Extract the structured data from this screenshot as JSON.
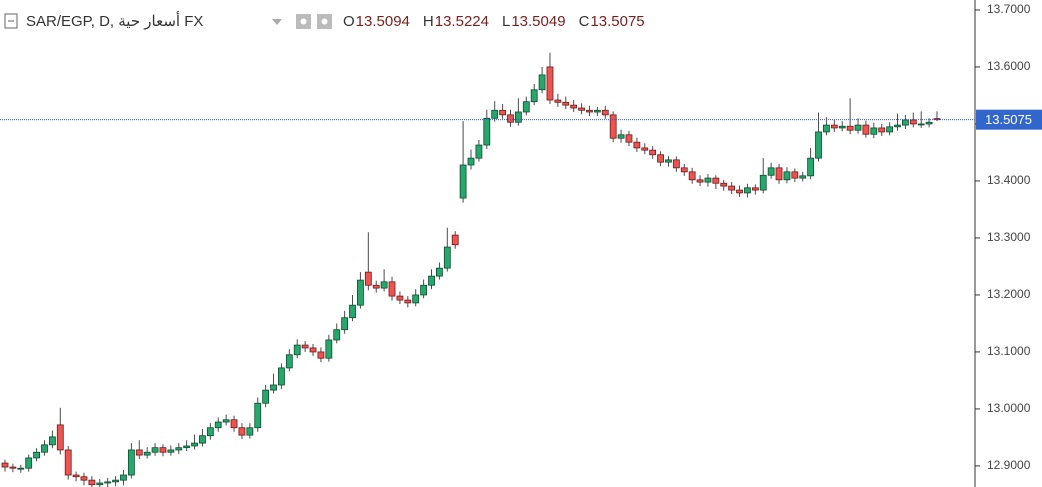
{
  "chart_data": {
    "type": "candlestick",
    "title": "SAR/EGP, D, أسعار حية FX",
    "ohlc_labels": [
      "O",
      "H",
      "L",
      "C"
    ],
    "up_color": "#26a86c",
    "down_color": "#ef5350",
    "ylim": [
      12.863,
      13.7175
    ],
    "yticks": [
      {
        "value": 12.9,
        "label": "12.9000"
      },
      {
        "value": 13.0,
        "label": "13.0000"
      },
      {
        "value": 13.1,
        "label": "13.1000"
      },
      {
        "value": 13.2,
        "label": "13.2000"
      },
      {
        "value": 13.3,
        "label": "13.3000"
      },
      {
        "value": 13.4,
        "label": "13.4000"
      },
      {
        "value": 13.5,
        "label": "13.5000"
      },
      {
        "value": 13.6,
        "label": "13.6000"
      },
      {
        "value": 13.7,
        "label": "13.7000"
      }
    ],
    "open": [
      12.905,
      12.898,
      12.896,
      12.896,
      12.914,
      12.924,
      12.937,
      12.972,
      12.928,
      12.884,
      12.881,
      12.875,
      12.867,
      12.87,
      12.872,
      12.875,
      12.884,
      12.928,
      12.919,
      12.924,
      12.932,
      12.924,
      12.928,
      12.932,
      12.935,
      12.94,
      12.953,
      12.967,
      12.977,
      12.981,
      12.967,
      12.954,
      12.967,
      13.01,
      13.033,
      13.042,
      13.072,
      13.095,
      13.112,
      13.107,
      13.1,
      13.089,
      13.121,
      13.139,
      13.16,
      13.182,
      13.24,
      13.217,
      13.212,
      13.223,
      13.198,
      13.191,
      13.186,
      13.2,
      13.217,
      13.233,
      13.247,
      13.305,
      13.37,
      13.428,
      13.44,
      13.463,
      13.51,
      13.524,
      13.516,
      13.503,
      13.521,
      13.539,
      13.56,
      13.6,
      13.542,
      13.538,
      13.533,
      13.528,
      13.524,
      13.521,
      13.524,
      13.516,
      13.475,
      13.481,
      13.468,
      13.458,
      13.454,
      13.446,
      13.433,
      13.437,
      13.423,
      13.416,
      13.402,
      13.398,
      13.405,
      13.396,
      13.391,
      13.384,
      13.379,
      13.388,
      13.384,
      13.41,
      13.423,
      13.402,
      13.416,
      13.405,
      13.409,
      13.44,
      13.486,
      13.498,
      13.493,
      13.496,
      13.489,
      13.498,
      13.482,
      13.493,
      13.486,
      13.495,
      13.498,
      13.507,
      13.5,
      13.5,
      13.5094
    ],
    "high": [
      12.911,
      12.904,
      12.902,
      12.92,
      12.931,
      12.945,
      12.962,
      13.002,
      12.935,
      12.89,
      12.888,
      12.882,
      12.877,
      12.879,
      12.882,
      12.893,
      12.94,
      12.945,
      12.933,
      12.94,
      12.938,
      12.936,
      12.94,
      12.945,
      12.955,
      12.965,
      12.975,
      12.985,
      12.99,
      12.988,
      12.975,
      12.975,
      13.02,
      13.042,
      13.062,
      13.08,
      13.105,
      13.122,
      13.119,
      13.114,
      13.108,
      13.13,
      13.15,
      13.172,
      13.2,
      13.24,
      13.31,
      13.225,
      13.245,
      13.232,
      13.206,
      13.198,
      13.21,
      13.227,
      13.245,
      13.257,
      13.318,
      13.312,
      13.505,
      13.455,
      13.472,
      13.525,
      13.54,
      13.535,
      13.525,
      13.545,
      13.548,
      13.57,
      13.6,
      13.625,
      13.553,
      13.548,
      13.542,
      13.536,
      13.532,
      13.53,
      13.532,
      13.522,
      13.49,
      13.488,
      13.476,
      13.466,
      13.461,
      13.452,
      13.444,
      13.443,
      13.43,
      13.423,
      13.41,
      13.412,
      13.41,
      13.402,
      13.398,
      13.392,
      13.395,
      13.394,
      13.44,
      13.432,
      13.43,
      13.424,
      13.422,
      13.416,
      13.458,
      13.52,
      13.512,
      13.508,
      13.505,
      13.545,
      13.51,
      13.506,
      13.502,
      13.5,
      13.503,
      13.518,
      13.516,
      13.52,
      13.522,
      13.51,
      13.5224
    ],
    "low": [
      12.89,
      12.889,
      12.888,
      12.89,
      12.908,
      12.918,
      12.931,
      12.92,
      12.876,
      12.873,
      12.866,
      12.858,
      12.86,
      12.862,
      12.864,
      12.866,
      12.878,
      12.912,
      12.913,
      12.918,
      12.917,
      12.918,
      12.921,
      12.926,
      12.929,
      12.934,
      12.946,
      12.96,
      12.971,
      12.96,
      12.947,
      12.948,
      12.96,
      13.003,
      13.027,
      13.035,
      13.066,
      13.089,
      13.1,
      13.093,
      13.082,
      13.083,
      13.115,
      13.132,
      13.154,
      13.176,
      13.208,
      13.204,
      13.206,
      13.19,
      13.184,
      13.178,
      13.18,
      13.194,
      13.21,
      13.227,
      13.241,
      13.281,
      13.362,
      13.42,
      13.434,
      13.456,
      13.504,
      13.509,
      13.495,
      13.497,
      13.515,
      13.533,
      13.554,
      13.535,
      13.53,
      13.526,
      13.521,
      13.517,
      13.514,
      13.514,
      13.509,
      13.468,
      13.467,
      13.461,
      13.451,
      13.447,
      13.439,
      13.426,
      13.425,
      13.416,
      13.409,
      13.395,
      13.391,
      13.39,
      13.386,
      13.383,
      13.377,
      13.372,
      13.371,
      13.376,
      13.378,
      13.404,
      13.395,
      13.396,
      13.398,
      13.399,
      13.403,
      13.434,
      13.48,
      13.486,
      13.487,
      13.482,
      13.483,
      13.476,
      13.475,
      13.479,
      13.48,
      13.488,
      13.491,
      13.494,
      13.493,
      13.494,
      13.5049
    ],
    "close": [
      12.898,
      12.896,
      12.896,
      12.914,
      12.924,
      12.937,
      12.951,
      12.928,
      12.884,
      12.881,
      12.875,
      12.867,
      12.87,
      12.872,
      12.875,
      12.884,
      12.928,
      12.919,
      12.924,
      12.932,
      12.924,
      12.928,
      12.932,
      12.935,
      12.94,
      12.953,
      12.967,
      12.977,
      12.981,
      12.967,
      12.954,
      12.967,
      13.01,
      13.033,
      13.042,
      13.072,
      13.095,
      13.112,
      13.107,
      13.1,
      13.089,
      13.121,
      13.139,
      13.16,
      13.182,
      13.226,
      13.217,
      13.212,
      13.223,
      13.198,
      13.191,
      13.186,
      13.2,
      13.217,
      13.233,
      13.247,
      13.284,
      13.288,
      13.428,
      13.44,
      13.463,
      13.51,
      13.524,
      13.516,
      13.503,
      13.521,
      13.539,
      13.56,
      13.586,
      13.542,
      13.538,
      13.533,
      13.528,
      13.524,
      13.521,
      13.524,
      13.516,
      13.475,
      13.481,
      13.468,
      13.458,
      13.454,
      13.446,
      13.433,
      13.437,
      13.423,
      13.416,
      13.402,
      13.398,
      13.405,
      13.396,
      13.391,
      13.384,
      13.379,
      13.388,
      13.384,
      13.41,
      13.423,
      13.402,
      13.416,
      13.405,
      13.409,
      13.44,
      13.486,
      13.498,
      13.493,
      13.496,
      13.489,
      13.498,
      13.482,
      13.493,
      13.486,
      13.495,
      13.498,
      13.507,
      13.5,
      13.5,
      13.503,
      13.5075
    ]
  }
}
